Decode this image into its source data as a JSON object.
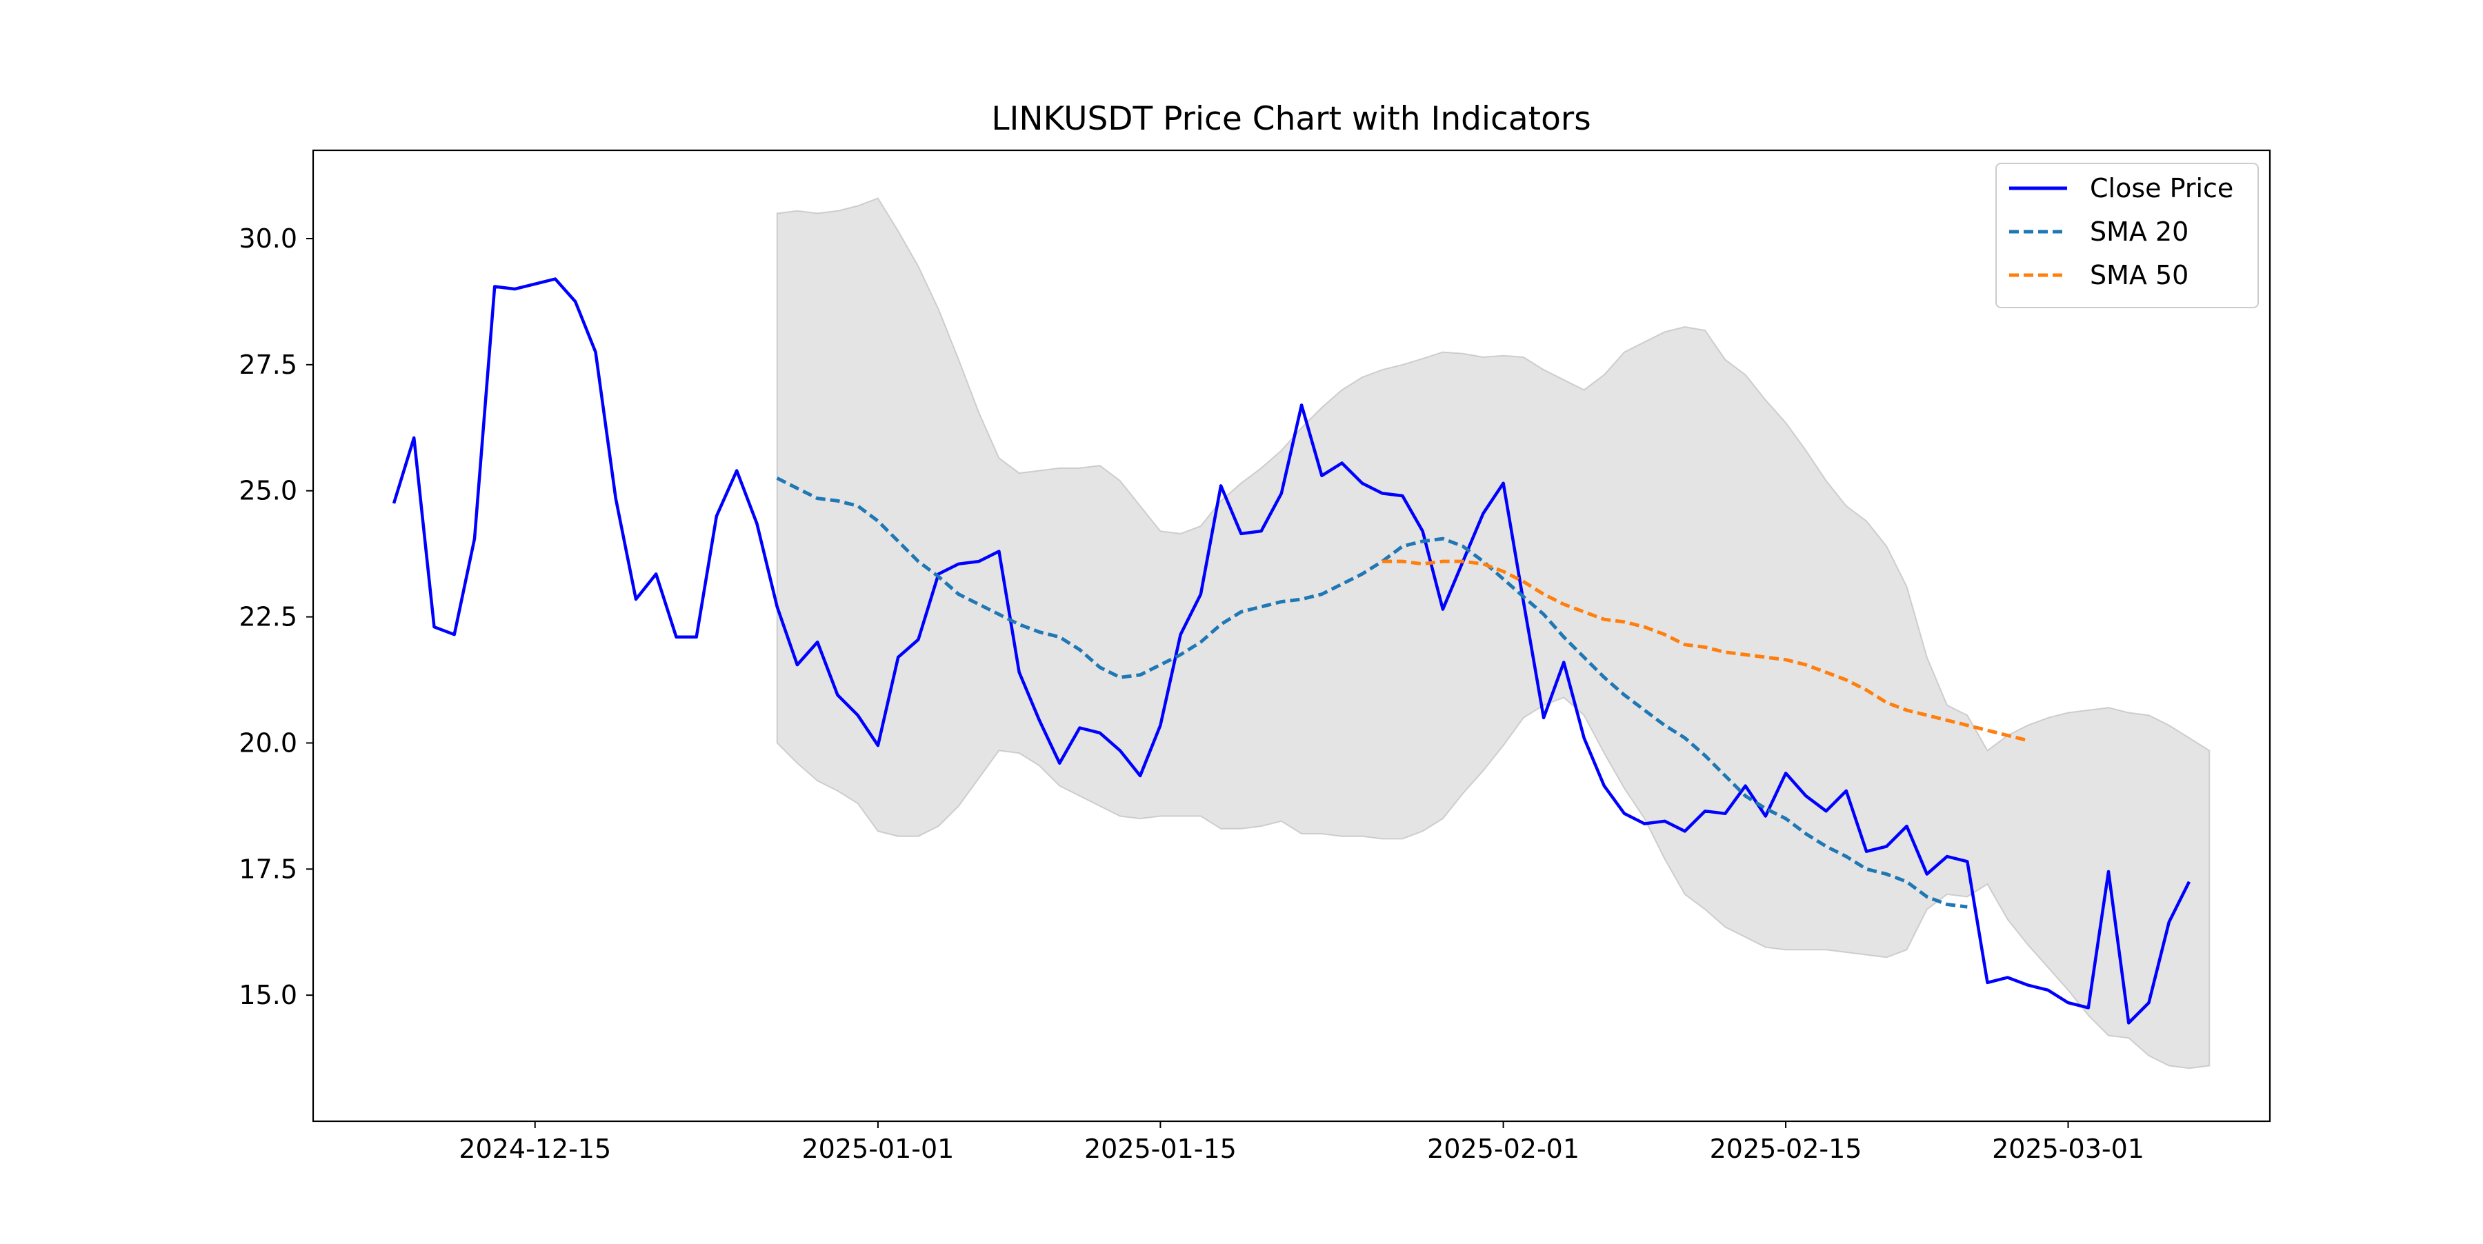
{
  "chart_data": {
    "type": "line",
    "title": "LINKUSDT Price Chart with Indicators",
    "xlabel": "",
    "ylabel": "",
    "x_axis_type": "date",
    "xlim": [
      "2024-12-04",
      "2025-03-11"
    ],
    "ylim": [
      12.5,
      31.75
    ],
    "x_ticks": [
      "2024-12-15",
      "2025-01-01",
      "2025-01-15",
      "2025-02-01",
      "2025-02-15",
      "2025-03-01"
    ],
    "y_ticks": [
      "15.0",
      "17.5",
      "20.0",
      "22.5",
      "25.0",
      "27.5",
      "30.0"
    ],
    "grid": false,
    "legend_position": "top-right",
    "start_date": "2024-12-08",
    "band": {
      "start_date": "2024-12-27",
      "upper": [
        30.5,
        30.55,
        30.5,
        30.55,
        30.65,
        30.8,
        30.15,
        29.45,
        28.6,
        27.6,
        26.55,
        25.65,
        25.35,
        25.4,
        25.45,
        25.45,
        25.5,
        25.2,
        24.7,
        24.2,
        24.15,
        24.3,
        24.8,
        25.15,
        25.45,
        25.8,
        26.25,
        26.65,
        27.0,
        27.25,
        27.4,
        27.5,
        27.62,
        27.75,
        27.72,
        27.65,
        27.68,
        27.65,
        27.4,
        27.2,
        27.0,
        27.3,
        27.75,
        27.95,
        28.15,
        28.25,
        28.18,
        27.6,
        27.3,
        26.8,
        26.35,
        25.8,
        25.2,
        24.7,
        24.4,
        23.9,
        23.1,
        21.7,
        20.75,
        20.55,
        19.85,
        20.15,
        20.35,
        20.5,
        20.6,
        20.65,
        20.7,
        20.6,
        20.55,
        20.35,
        20.1,
        19.85
      ],
      "lower": [
        20.0,
        19.6,
        19.25,
        19.05,
        18.8,
        18.25,
        18.15,
        18.15,
        18.35,
        18.75,
        19.3,
        19.85,
        19.8,
        19.55,
        19.15,
        18.95,
        18.75,
        18.55,
        18.5,
        18.55,
        18.55,
        18.55,
        18.3,
        18.3,
        18.35,
        18.45,
        18.2,
        18.2,
        18.15,
        18.15,
        18.1,
        18.1,
        18.25,
        18.5,
        19.0,
        19.45,
        19.95,
        20.5,
        20.75,
        20.9,
        20.55,
        19.8,
        19.1,
        18.5,
        17.7,
        17.0,
        16.7,
        16.35,
        16.15,
        15.95,
        15.9,
        15.9,
        15.9,
        15.85,
        15.8,
        15.75,
        15.9,
        16.7,
        17.0,
        16.95,
        17.2,
        16.5,
        16.0,
        15.55,
        15.1,
        14.6,
        14.2,
        14.15,
        13.8,
        13.6,
        13.55,
        13.6
      ]
    },
    "series": [
      {
        "name": "Close Price",
        "color": "#0000ff",
        "style": "solid",
        "start_date": "2024-12-08",
        "values": [
          24.75,
          26.05,
          22.3,
          22.15,
          24.05,
          29.05,
          29.0,
          29.1,
          29.2,
          28.75,
          27.75,
          24.85,
          22.85,
          23.35,
          22.1,
          22.1,
          24.5,
          25.4,
          24.35,
          22.7,
          21.55,
          22.0,
          20.95,
          20.55,
          19.95,
          21.7,
          22.05,
          23.35,
          23.55,
          23.6,
          23.8,
          21.4,
          20.45,
          19.6,
          20.3,
          20.2,
          19.85,
          19.35,
          20.35,
          22.15,
          22.95,
          25.1,
          24.15,
          24.2,
          24.95,
          26.7,
          25.3,
          25.55,
          25.15,
          24.95,
          24.9,
          24.2,
          22.65,
          23.6,
          24.55,
          25.15,
          22.8,
          20.5,
          21.6,
          20.1,
          19.15,
          18.6,
          18.4,
          18.45,
          18.25,
          18.65,
          18.6,
          19.15,
          18.55,
          19.4,
          18.95,
          18.65,
          19.05,
          17.85,
          17.95,
          18.35,
          17.4,
          17.75,
          17.65,
          15.25,
          15.35,
          15.2,
          15.1,
          14.85,
          14.75,
          17.45,
          14.45,
          14.85,
          16.45,
          17.25
        ]
      },
      {
        "name": "SMA 20",
        "color": "#1f77b4",
        "style": "dashed",
        "start_date": "2024-12-27",
        "values": [
          25.25,
          25.05,
          24.85,
          24.8,
          24.7,
          24.4,
          24.0,
          23.6,
          23.3,
          22.95,
          22.75,
          22.55,
          22.35,
          22.2,
          22.1,
          21.85,
          21.5,
          21.3,
          21.35,
          21.55,
          21.75,
          22.0,
          22.35,
          22.6,
          22.7,
          22.8,
          22.85,
          22.95,
          23.15,
          23.35,
          23.6,
          23.9,
          24.0,
          24.05,
          23.9,
          23.6,
          23.25,
          22.9,
          22.55,
          22.1,
          21.7,
          21.3,
          20.95,
          20.65,
          20.35,
          20.1,
          19.75,
          19.35,
          18.95,
          18.7,
          18.5,
          18.2,
          17.95,
          17.75,
          17.5,
          17.4,
          17.25,
          16.95,
          16.8,
          16.75
        ]
      },
      {
        "name": "SMA 50",
        "color": "#ff7f0e",
        "style": "dashed",
        "start_date": "2025-01-26",
        "values": [
          23.6,
          23.6,
          23.55,
          23.6,
          23.6,
          23.55,
          23.4,
          23.2,
          22.95,
          22.75,
          22.6,
          22.45,
          22.4,
          22.3,
          22.15,
          21.95,
          21.9,
          21.8,
          21.75,
          21.7,
          21.65,
          21.55,
          21.4,
          21.25,
          21.05,
          20.8,
          20.65,
          20.55,
          20.45,
          20.35,
          20.25,
          20.15,
          20.05
        ]
      }
    ]
  }
}
